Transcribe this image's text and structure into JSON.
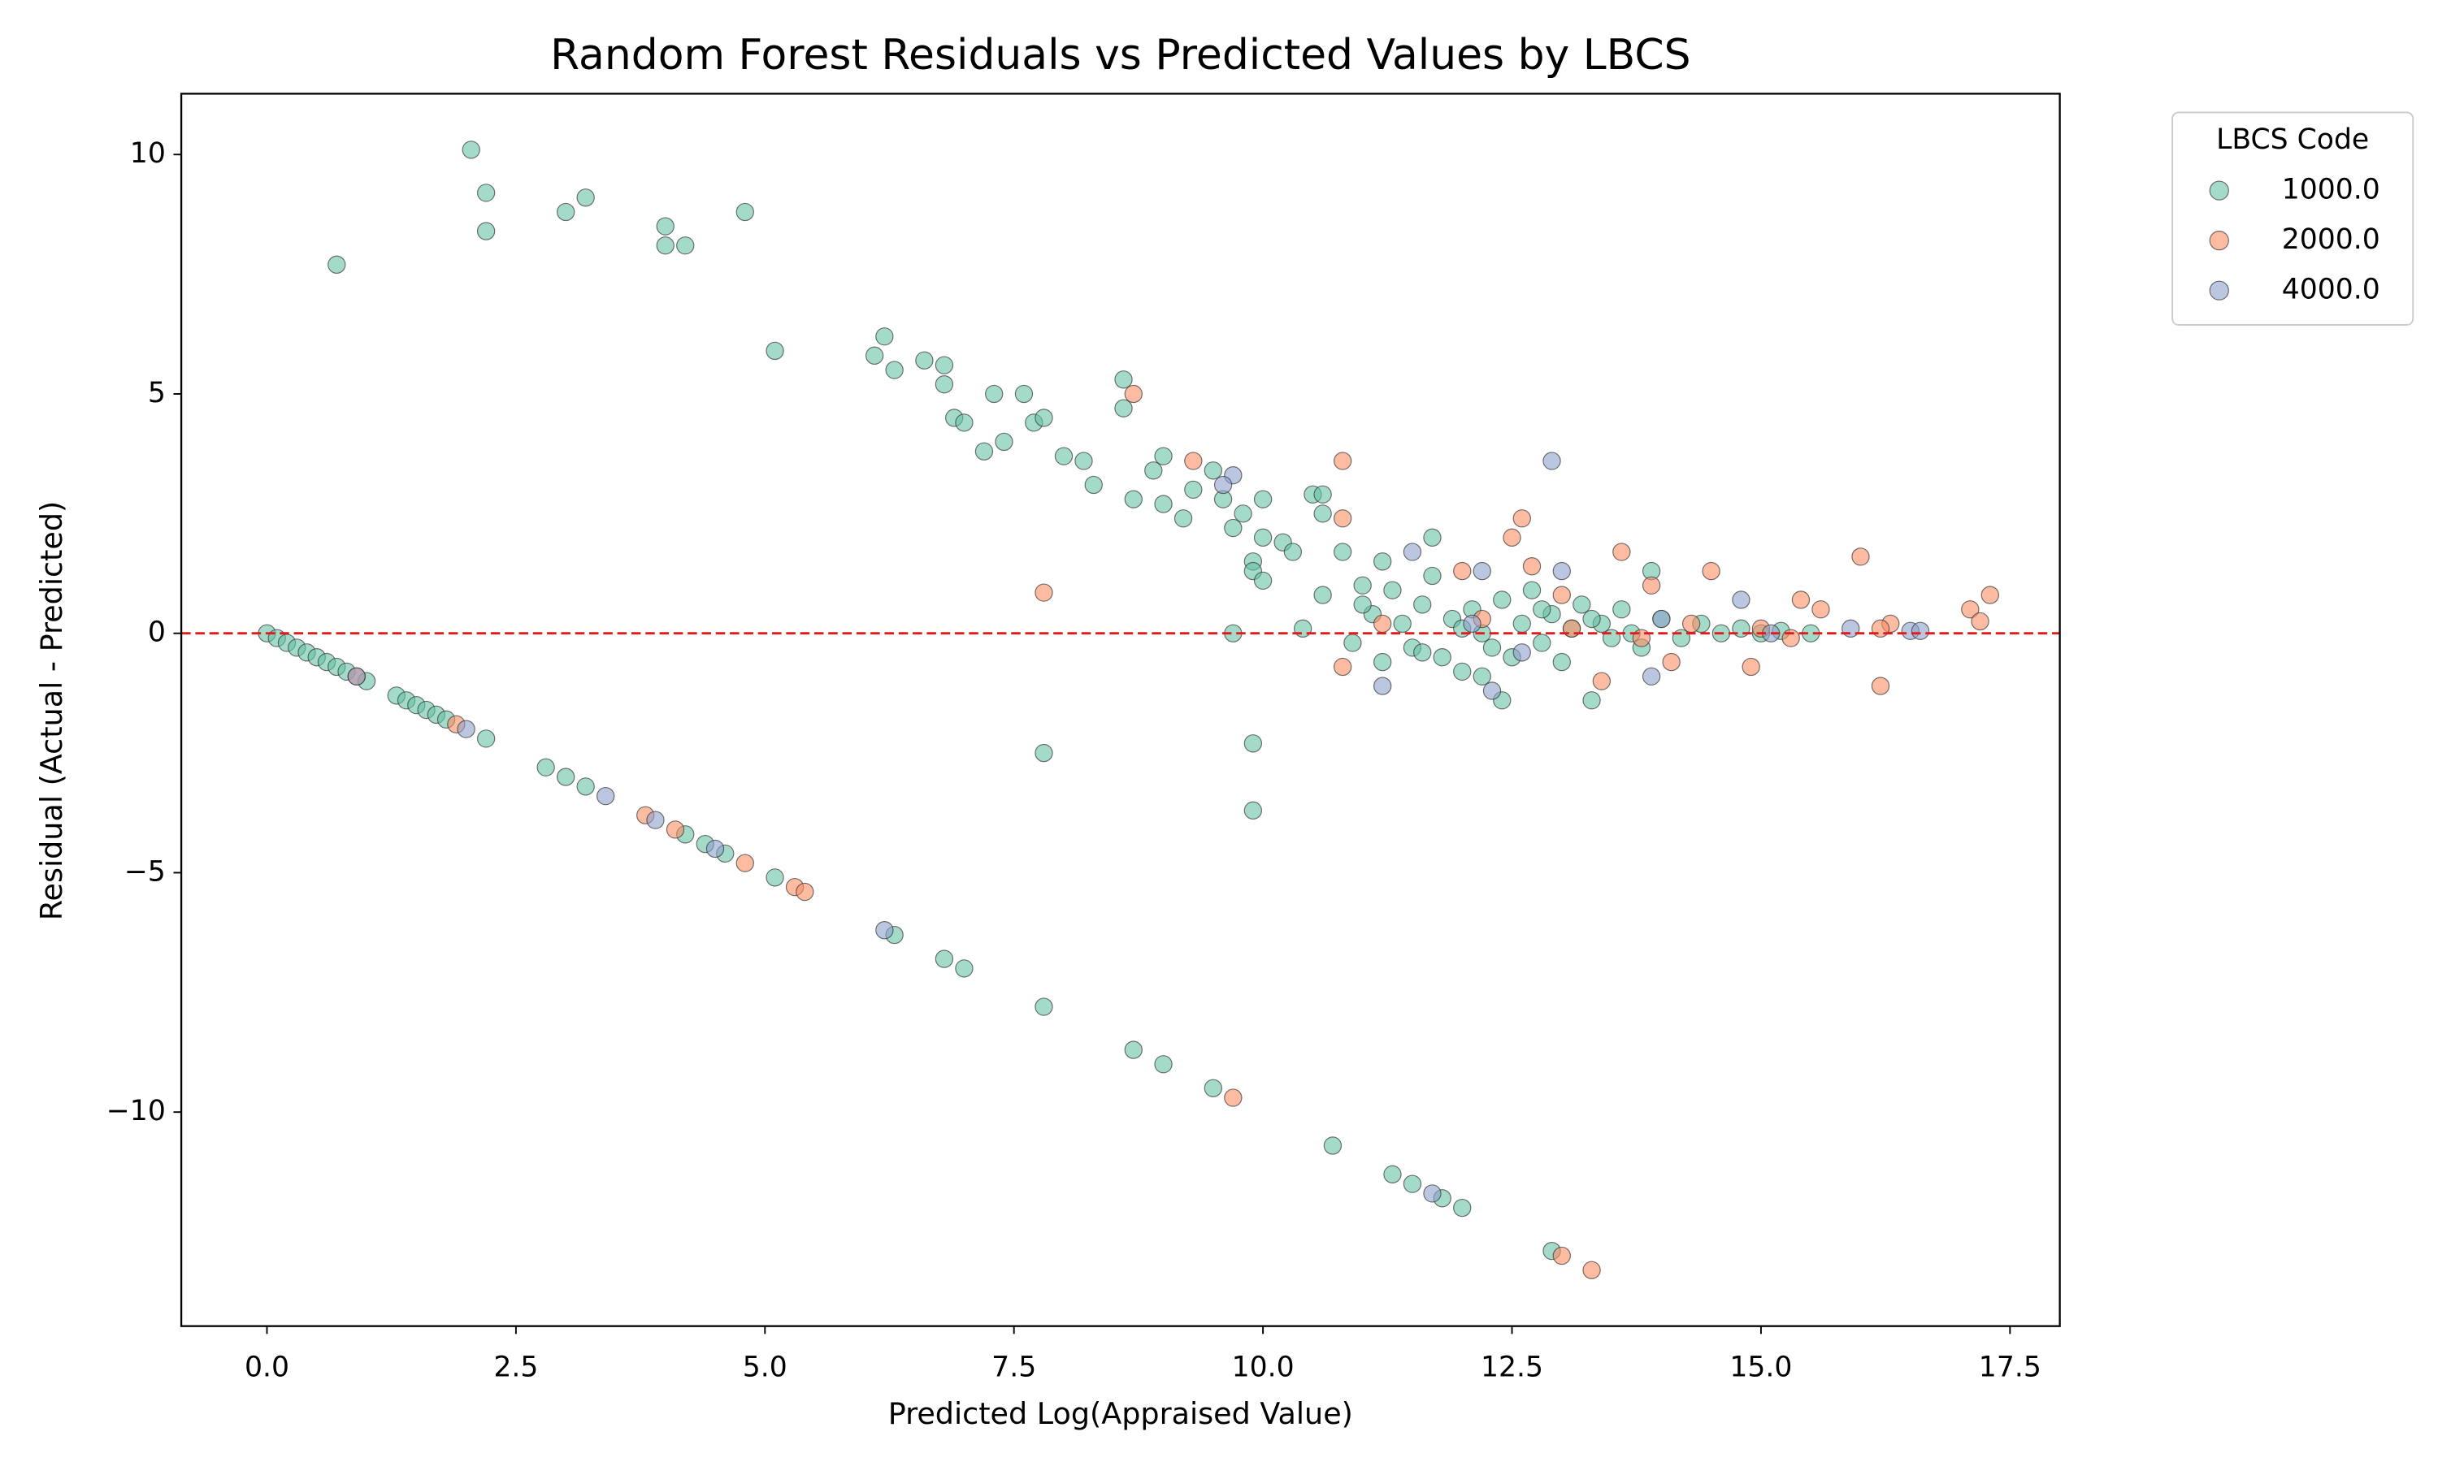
{
  "chart_data": {
    "type": "scatter",
    "title": "Random Forest Residuals vs Predicted Values by LBCS",
    "x_label": "Predicted Log(Appraised Value)",
    "y_label": "Residual (Actual - Predicted)",
    "xlim": [
      -0.86,
      18.0
    ],
    "ylim": [
      -14.47,
      11.27
    ],
    "xticks": [
      {
        "value": 0,
        "label": "0.0"
      },
      2.5,
      {
        "value": 5,
        "label": "5.0"
      },
      7.5,
      {
        "value": 10,
        "label": "10.0"
      },
      12.5,
      {
        "value": 15,
        "label": "15.0"
      },
      17.5
    ],
    "yticks": [
      {
        "value": -10,
        "label": "−10"
      },
      {
        "value": -5,
        "label": "−5"
      },
      0,
      5,
      10
    ],
    "grid": false,
    "reference_line": {
      "y": 0,
      "color": "#e31a1c",
      "style": "dashed"
    },
    "legend_title": "LBCS Code",
    "legend": "outside upper right",
    "series": [
      {
        "name": "1000.0",
        "color": "#66c2a5",
        "x": [
          0,
          0.1,
          0.2,
          0.3,
          0.4,
          0.5,
          0.6,
          0.7,
          0.8,
          1.0,
          1.3,
          1.4,
          1.5,
          1.6,
          1.7,
          1.8,
          2.2,
          2.8,
          3.0,
          3.2,
          4.2,
          4.4,
          4.6,
          5.1,
          6.3,
          6.8,
          7.0,
          7.8,
          8.7,
          9.0,
          9.5,
          10.7,
          11.3,
          11.5,
          11.8,
          12.0,
          12.9,
          0.7,
          2.05,
          2.2,
          2.2,
          3.0,
          3.2,
          4.0,
          4.0,
          4.2,
          4.8,
          5.1,
          6.2,
          6.1,
          6.3,
          6.6,
          6.8,
          6.8,
          7.3,
          7.6,
          6.9,
          7.0,
          7.7,
          7.8,
          7.2,
          7.4,
          8.0,
          8.2,
          8.3,
          8.6,
          8.6,
          8.7,
          8.9,
          9.0,
          9.0,
          9.2,
          9.3,
          9.5,
          9.6,
          9.7,
          9.8,
          9.9,
          9.9,
          10.0,
          10.0,
          10.2,
          10.3,
          10.5,
          10.6,
          10.6,
          10.8,
          10.0,
          9.7,
          9.9,
          9.9,
          7.8,
          10.4,
          10.6,
          10.9,
          11.0,
          11.1,
          11.2,
          11.3,
          11.4,
          11.5,
          11.6,
          11.7,
          11.8,
          11.9,
          12.0,
          12.1,
          12.2,
          12.3,
          12.4,
          12.5,
          12.6,
          12.7,
          12.8,
          12.9,
          13.0,
          13.1,
          13.2,
          13.3,
          13.4,
          13.5,
          13.6,
          13.7,
          13.8,
          13.9,
          14.0,
          14.2,
          14.4,
          14.6,
          14.8,
          15.0,
          15.2,
          15.5,
          11.2,
          11.6,
          12.0,
          12.4,
          12.8,
          13.3,
          11.7,
          11.0,
          12.2
        ],
        "values": [
          0,
          -0.1,
          -0.2,
          -0.3,
          -0.4,
          -0.5,
          -0.6,
          -0.7,
          -0.8,
          -1.0,
          -1.3,
          -1.4,
          -1.5,
          -1.6,
          -1.7,
          -1.8,
          -2.2,
          -2.8,
          -3.0,
          -3.2,
          -4.2,
          -4.4,
          -4.6,
          -5.1,
          -6.3,
          -6.8,
          -7.0,
          -7.8,
          -8.7,
          -9.0,
          -9.5,
          -10.7,
          -11.3,
          -11.5,
          -11.8,
          -12.0,
          -12.9,
          7.7,
          10.1,
          9.2,
          8.4,
          8.8,
          9.1,
          8.5,
          8.1,
          8.1,
          8.8,
          5.9,
          6.2,
          5.8,
          5.5,
          5.7,
          5.6,
          5.2,
          5.0,
          5.0,
          4.5,
          4.4,
          4.4,
          4.5,
          3.8,
          4.0,
          3.7,
          3.6,
          3.1,
          4.7,
          5.3,
          2.8,
          3.4,
          3.7,
          2.7,
          2.4,
          3.0,
          3.4,
          2.8,
          2.2,
          2.5,
          1.5,
          1.3,
          2.8,
          2.0,
          1.9,
          1.7,
          2.9,
          2.5,
          2.9,
          1.7,
          1.1,
          0.0,
          -2.3,
          -3.7,
          -2.5,
          0.1,
          0.8,
          -0.2,
          1.0,
          0.4,
          -0.6,
          0.9,
          0.2,
          -0.3,
          0.6,
          2.0,
          -0.5,
          0.3,
          -0.8,
          0.5,
          0.0,
          -0.3,
          0.7,
          -0.5,
          0.2,
          0.9,
          -0.2,
          0.4,
          -0.6,
          0.1,
          0.6,
          -1.4,
          0.2,
          -0.1,
          0.5,
          0.0,
          -0.3,
          1.3,
          0.3,
          -0.1,
          0.2,
          0.0,
          0.1,
          0.0,
          0.05,
          0.0,
          1.5,
          -0.4,
          0.1,
          -1.4,
          0.5,
          0.3,
          1.2,
          0.6,
          -0.9
        ]
      },
      {
        "name": "2000.0",
        "color": "#fc8d62",
        "x": [
          0.9,
          1.9,
          3.8,
          4.1,
          4.8,
          5.3,
          5.4,
          9.7,
          13.0,
          13.3,
          8.7,
          7.8,
          9.3,
          10.8,
          10.8,
          10.8,
          11.2,
          12.0,
          12.6,
          12.5,
          12.7,
          13.0,
          13.4,
          13.6,
          13.9,
          14.1,
          14.5,
          14.9,
          15.4,
          15.6,
          16.0,
          16.2,
          16.3,
          17.1,
          17.2,
          17.3,
          12.2,
          13.1,
          13.8,
          14.3,
          15.0,
          15.3,
          16.2
        ],
        "values": [
          -0.9,
          -1.9,
          -3.8,
          -4.1,
          -4.8,
          -5.3,
          -5.4,
          -9.7,
          -13.0,
          -13.3,
          5.0,
          0.85,
          3.6,
          3.6,
          2.4,
          -0.7,
          0.2,
          1.3,
          2.4,
          2.0,
          1.4,
          0.8,
          -1.0,
          1.7,
          1.0,
          -0.6,
          1.3,
          -0.7,
          0.7,
          0.5,
          1.6,
          -1.1,
          0.2,
          0.5,
          0.25,
          0.8,
          0.3,
          0.1,
          -0.1,
          0.2,
          0.1,
          -0.1,
          0.1
        ]
      },
      {
        "name": "4000.0",
        "color": "#8da0cb",
        "x": [
          0.9,
          2.0,
          3.4,
          3.9,
          4.5,
          6.2,
          11.7,
          9.7,
          9.6,
          11.5,
          12.2,
          12.9,
          12.3,
          11.2,
          13.0,
          13.9,
          14.8,
          15.1,
          15.9,
          16.5,
          16.6,
          12.6,
          12.1,
          14.0
        ],
        "values": [
          -0.9,
          -2.0,
          -3.4,
          -3.9,
          -4.5,
          -6.2,
          -11.7,
          3.3,
          3.1,
          1.7,
          1.3,
          3.6,
          -1.2,
          -1.1,
          1.3,
          -0.9,
          0.7,
          0.0,
          0.1,
          0.05,
          0.05,
          -0.4,
          0.2,
          0.3
        ]
      }
    ]
  }
}
